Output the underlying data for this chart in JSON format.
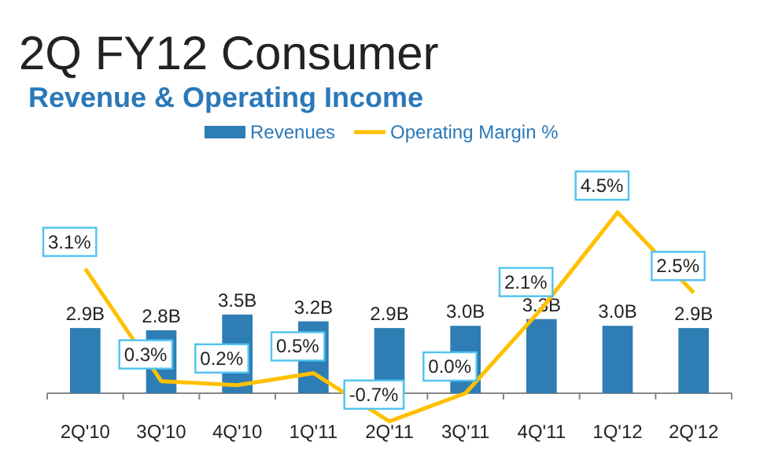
{
  "chart_data": {
    "type": "bar",
    "title": "2Q FY12 Consumer",
    "subtitle": "Revenue & Operating Income",
    "categories": [
      "2Q'10",
      "3Q'10",
      "4Q'10",
      "1Q'11",
      "2Q'11",
      "3Q'11",
      "4Q'11",
      "1Q'12",
      "2Q'12"
    ],
    "series": [
      {
        "name": "Revenues",
        "color": "#2e7db5",
        "values": [
          2.9,
          2.8,
          3.5,
          3.2,
          2.9,
          3.0,
          3.3,
          3.0,
          2.9
        ],
        "value_labels": [
          "2.9B",
          "2.8B",
          "3.5B",
          "3.2B",
          "2.9B",
          "3.0B",
          "3.3B",
          "3.0B",
          "2.9B"
        ]
      },
      {
        "name": "Operating Margin %",
        "type": "line",
        "axis": "y2",
        "color": "#ffc000",
        "values": [
          3.1,
          0.3,
          0.2,
          0.5,
          -0.7,
          0.0,
          2.1,
          4.5,
          2.5
        ],
        "value_labels": [
          "3.1%",
          "0.3%",
          "0.2%",
          "0.5%",
          "-0.7%",
          "0.0%",
          "2.1%",
          "4.5%",
          "2.5%"
        ]
      }
    ],
    "tick_labels": "x",
    "legend": "top",
    "marker": "none",
    "line_style": "solid",
    "grid": false
  }
}
